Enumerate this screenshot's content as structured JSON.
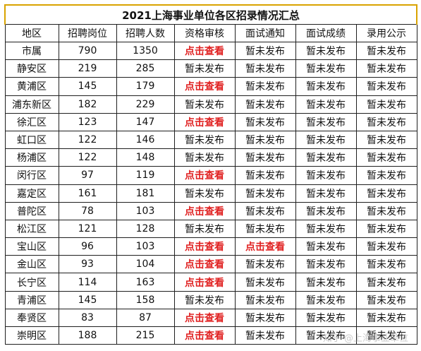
{
  "title": "2021上海事业单位各区招录情况汇总",
  "headers": [
    "地区",
    "招聘岗位",
    "招聘人数",
    "资格审核",
    "面试通知",
    "面试成绩",
    "录用公示"
  ],
  "rows": [
    [
      "市属",
      "790",
      "1350",
      "点击查看",
      "暂未发布",
      "暂未发布",
      "暂未发布"
    ],
    [
      "静安区",
      "219",
      "285",
      "暂未发布",
      "暂未发布",
      "暂未发布",
      "暂未发布"
    ],
    [
      "黄浦区",
      "145",
      "179",
      "点击查看",
      "暂未发布",
      "暂未发布",
      "暂未发布"
    ],
    [
      "浦东新区",
      "182",
      "229",
      "暂未发布",
      "暂未发布",
      "暂未发布",
      "暂未发布"
    ],
    [
      "徐汇区",
      "123",
      "147",
      "点击查看",
      "暂未发布",
      "暂未发布",
      "暂未发布"
    ],
    [
      "虹口区",
      "122",
      "146",
      "暂未发布",
      "暂未发布",
      "暂未发布",
      "暂未发布"
    ],
    [
      "杨浦区",
      "122",
      "148",
      "暂未发布",
      "暂未发布",
      "暂未发布",
      "暂未发布"
    ],
    [
      "闵行区",
      "97",
      "119",
      "点击查看",
      "暂未发布",
      "暂未发布",
      "暂未发布"
    ],
    [
      "嘉定区",
      "161",
      "181",
      "暂未发布",
      "暂未发布",
      "暂未发布",
      "暂未发布"
    ],
    [
      "普陀区",
      "78",
      "103",
      "点击查看",
      "暂未发布",
      "暂未发布",
      "暂未发布"
    ],
    [
      "松江区",
      "121",
      "128",
      "暂未发布",
      "暂未发布",
      "暂未发布",
      "暂未发布"
    ],
    [
      "宝山区",
      "96",
      "103",
      "点击查看",
      "点击查看",
      "暂未发布",
      "暂未发布"
    ],
    [
      "金山区",
      "93",
      "104",
      "点击查看",
      "暂未发布",
      "暂未发布",
      "暂未发布"
    ],
    [
      "长宁区",
      "114",
      "163",
      "点击查看",
      "暂未发布",
      "暂未发布",
      "暂未发布"
    ],
    [
      "青浦区",
      "145",
      "158",
      "暂未发布",
      "暂未发布",
      "暂未发布",
      "暂未发布"
    ],
    [
      "奉贤区",
      "83",
      "87",
      "点击查看",
      "暂未发布",
      "暂未发布",
      "暂未发布"
    ],
    [
      "崇明区",
      "188",
      "215",
      "点击查看",
      "暂未发布",
      "暂未发布",
      "暂未发布"
    ]
  ],
  "link_text": "点击查看",
  "link_color": "#e02020",
  "watermark": "知乎 @上海事业单位"
}
